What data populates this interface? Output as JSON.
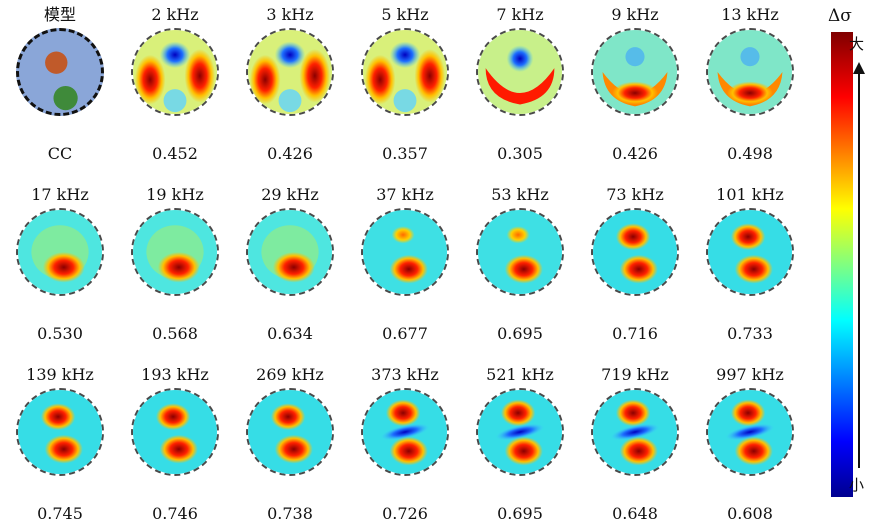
{
  "model": {
    "label": "模型",
    "cc_label": "CC"
  },
  "colorbar": {
    "title": "Δσ",
    "top_label": "大",
    "bottom_label": "小"
  },
  "panels": [
    {
      "freq": "2 kHz",
      "value": "0.452",
      "pattern": "low"
    },
    {
      "freq": "3 kHz",
      "value": "0.426",
      "pattern": "low"
    },
    {
      "freq": "5 kHz",
      "value": "0.357",
      "pattern": "low"
    },
    {
      "freq": "7 kHz",
      "value": "0.305",
      "pattern": "u-blue"
    },
    {
      "freq": "9 kHz",
      "value": "0.426",
      "pattern": "u"
    },
    {
      "freq": "13 kHz",
      "value": "0.498",
      "pattern": "u"
    },
    {
      "freq": "17 kHz",
      "value": "0.530",
      "pattern": "mid"
    },
    {
      "freq": "19 kHz",
      "value": "0.568",
      "pattern": "mid"
    },
    {
      "freq": "29 kHz",
      "value": "0.634",
      "pattern": "mid"
    },
    {
      "freq": "37 kHz",
      "value": "0.677",
      "pattern": "mid2"
    },
    {
      "freq": "53 kHz",
      "value": "0.695",
      "pattern": "mid2"
    },
    {
      "freq": "73 kHz",
      "value": "0.716",
      "pattern": "two"
    },
    {
      "freq": "101 kHz",
      "value": "0.733",
      "pattern": "two"
    },
    {
      "freq": "139 kHz",
      "value": "0.745",
      "pattern": "two"
    },
    {
      "freq": "193 kHz",
      "value": "0.746",
      "pattern": "two"
    },
    {
      "freq": "269 kHz",
      "value": "0.738",
      "pattern": "two"
    },
    {
      "freq": "373 kHz",
      "value": "0.726",
      "pattern": "two-blue"
    },
    {
      "freq": "521 kHz",
      "value": "0.695",
      "pattern": "two-blue"
    },
    {
      "freq": "719 kHz",
      "value": "0.648",
      "pattern": "two-blue"
    },
    {
      "freq": "997 kHz",
      "value": "0.608",
      "pattern": "two-blue"
    }
  ]
}
